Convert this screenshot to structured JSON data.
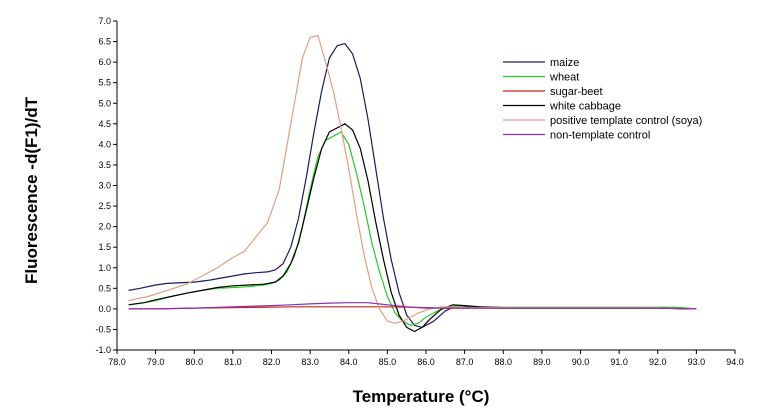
{
  "chart_data": {
    "type": "line",
    "title": "",
    "xlabel": "Temperature (°C)",
    "ylabel": "Fluorescence -d(F1)/dT",
    "xlim": [
      78.0,
      94.0
    ],
    "ylim": [
      -1.0,
      7.0
    ],
    "x_ticks": [
      "78.0",
      "79.0",
      "80.0",
      "81.0",
      "82.0",
      "83.0",
      "84.0",
      "85.0",
      "86.0",
      "87.0",
      "88.0",
      "89.0",
      "90.0",
      "91.0",
      "92.0",
      "93.0",
      "94.0"
    ],
    "y_ticks": [
      "-1.0",
      "-0.5",
      "0.0",
      "0.5",
      "1.0",
      "1.5",
      "2.0",
      "2.5",
      "3.0",
      "3.5",
      "4.0",
      "4.5",
      "5.0",
      "5.5",
      "6.0",
      "6.5",
      "7.0"
    ],
    "grid": false,
    "legend_position": "top-right",
    "series": [
      {
        "name": "maize",
        "color": "#1a1a66",
        "x": [
          78.3,
          78.6,
          79.0,
          79.3,
          79.7,
          80.0,
          80.4,
          80.7,
          81.0,
          81.3,
          81.6,
          81.9,
          82.1,
          82.3,
          82.5,
          82.7,
          82.9,
          83.1,
          83.3,
          83.5,
          83.7,
          83.9,
          84.1,
          84.3,
          84.5,
          84.7,
          84.9,
          85.1,
          85.3,
          85.5,
          85.7,
          85.9,
          86.2,
          86.5,
          86.8,
          87.2,
          87.6,
          88.0,
          89.0,
          90.0,
          91.0,
          92.0,
          92.8
        ],
        "values": [
          0.45,
          0.5,
          0.58,
          0.62,
          0.64,
          0.65,
          0.7,
          0.75,
          0.8,
          0.85,
          0.88,
          0.9,
          0.95,
          1.1,
          1.5,
          2.2,
          3.2,
          4.3,
          5.3,
          6.1,
          6.4,
          6.45,
          6.2,
          5.6,
          4.6,
          3.4,
          2.2,
          1.2,
          0.4,
          -0.15,
          -0.4,
          -0.45,
          -0.3,
          -0.05,
          0.08,
          0.05,
          0.03,
          0.02,
          0.02,
          0.02,
          0.02,
          0.02,
          0.0
        ]
      },
      {
        "name": "wheat",
        "color": "#22cc22",
        "x": [
          78.3,
          78.7,
          79.0,
          79.4,
          79.8,
          80.2,
          80.6,
          81.0,
          81.4,
          81.8,
          82.0,
          82.2,
          82.4,
          82.6,
          82.8,
          83.0,
          83.2,
          83.4,
          83.6,
          83.8,
          84.0,
          84.2,
          84.4,
          84.6,
          84.8,
          85.0,
          85.2,
          85.4,
          85.6,
          85.8,
          86.0,
          86.3,
          86.6,
          86.9,
          87.3,
          87.8,
          88.5,
          89.5,
          90.5,
          91.5,
          92.5,
          93.0
        ],
        "values": [
          0.1,
          0.15,
          0.2,
          0.3,
          0.38,
          0.45,
          0.5,
          0.52,
          0.54,
          0.58,
          0.62,
          0.7,
          0.9,
          1.3,
          2.0,
          2.9,
          3.7,
          4.1,
          4.2,
          4.3,
          4.0,
          3.3,
          2.5,
          1.6,
          0.9,
          0.3,
          -0.1,
          -0.3,
          -0.4,
          -0.35,
          -0.2,
          -0.05,
          0.05,
          0.08,
          0.05,
          0.04,
          0.04,
          0.04,
          0.04,
          0.04,
          0.04,
          0.0
        ]
      },
      {
        "name": "sugar-beet",
        "color": "#cc2222",
        "x": [
          78.3,
          79.0,
          80.0,
          81.0,
          82.0,
          82.5,
          83.0,
          83.5,
          84.0,
          84.5,
          85.0,
          85.5,
          86.0,
          86.5,
          87.0,
          87.5,
          88.0,
          89.0,
          90.0,
          91.0,
          92.0,
          93.0
        ],
        "values": [
          0.0,
          0.0,
          0.02,
          0.03,
          0.04,
          0.05,
          0.05,
          0.05,
          0.05,
          0.05,
          0.05,
          0.04,
          0.03,
          0.02,
          0.02,
          0.02,
          0.02,
          0.02,
          0.02,
          0.02,
          0.02,
          0.0
        ]
      },
      {
        "name": "white cabbage",
        "color": "#000000",
        "x": [
          78.3,
          78.7,
          79.0,
          79.4,
          79.8,
          80.2,
          80.6,
          81.0,
          81.4,
          81.8,
          82.1,
          82.3,
          82.5,
          82.7,
          82.9,
          83.1,
          83.3,
          83.5,
          83.7,
          83.9,
          84.1,
          84.3,
          84.5,
          84.7,
          84.9,
          85.1,
          85.3,
          85.5,
          85.7,
          85.9,
          86.1,
          86.4,
          86.7,
          87.0,
          87.4,
          88.0,
          89.0,
          90.0,
          91.0,
          92.0,
          92.8
        ],
        "values": [
          0.1,
          0.15,
          0.22,
          0.3,
          0.38,
          0.45,
          0.52,
          0.56,
          0.58,
          0.6,
          0.65,
          0.8,
          1.1,
          1.6,
          2.4,
          3.2,
          3.9,
          4.3,
          4.4,
          4.5,
          4.35,
          3.9,
          3.1,
          2.1,
          1.2,
          0.4,
          -0.15,
          -0.45,
          -0.55,
          -0.45,
          -0.25,
          0.0,
          0.1,
          0.08,
          0.05,
          0.03,
          0.03,
          0.03,
          0.03,
          0.03,
          0.0
        ]
      },
      {
        "name": "positive template control (soya)",
        "color": "#e0a080",
        "x": [
          78.3,
          78.8,
          79.3,
          79.8,
          80.2,
          80.6,
          81.0,
          81.3,
          81.6,
          81.9,
          82.2,
          82.5,
          82.8,
          83.0,
          83.2,
          83.4,
          83.6,
          83.8,
          84.0,
          84.2,
          84.4,
          84.6,
          84.8,
          85.0,
          85.2,
          85.4,
          85.6,
          85.8,
          86.1,
          86.4,
          86.7,
          87.0,
          87.5,
          88.0,
          89.0,
          90.0,
          91.0,
          92.0,
          93.0
        ],
        "values": [
          0.2,
          0.3,
          0.45,
          0.6,
          0.8,
          1.0,
          1.25,
          1.4,
          1.75,
          2.1,
          2.9,
          4.5,
          6.1,
          6.6,
          6.65,
          6.0,
          5.3,
          4.4,
          3.4,
          2.3,
          1.3,
          0.5,
          0.0,
          -0.3,
          -0.35,
          -0.3,
          -0.2,
          -0.1,
          0.0,
          0.05,
          0.05,
          0.03,
          0.03,
          0.03,
          0.03,
          0.03,
          0.03,
          0.03,
          0.0
        ]
      },
      {
        "name": "non-template control",
        "color": "#8833aa",
        "x": [
          78.3,
          79.0,
          80.0,
          81.0,
          82.0,
          82.5,
          83.0,
          83.5,
          84.0,
          84.5,
          85.0,
          85.5,
          86.0,
          86.5,
          87.0,
          87.5,
          88.0,
          89.0,
          90.0,
          91.0,
          92.0,
          93.0
        ],
        "values": [
          0.0,
          0.0,
          0.02,
          0.05,
          0.08,
          0.1,
          0.12,
          0.14,
          0.15,
          0.15,
          0.1,
          0.05,
          0.02,
          0.02,
          0.02,
          0.02,
          0.02,
          0.02,
          0.02,
          0.02,
          0.02,
          0.0
        ]
      }
    ]
  }
}
